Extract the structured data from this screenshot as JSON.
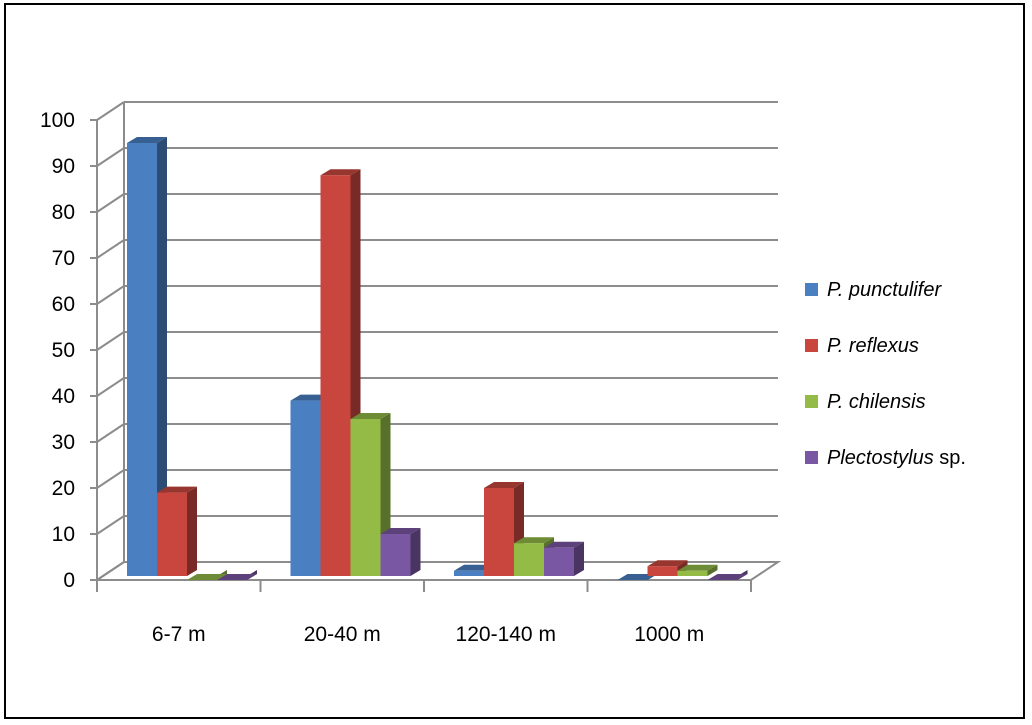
{
  "chart_data": {
    "type": "bar",
    "categories": [
      "6-7 m",
      "20-40 m",
      "120-140 m",
      "1000 m"
    ],
    "series": [
      {
        "name": "P. punctulifer",
        "name_italic": "P. punctulifer",
        "name_roman": "",
        "color": "#4a7fc1",
        "values": [
          95,
          39,
          2,
          0
        ]
      },
      {
        "name": "P. reflexus",
        "name_italic": "P. reflexus",
        "name_roman": "",
        "color": "#c9463f",
        "values": [
          19,
          88,
          20,
          3
        ]
      },
      {
        "name": "P. chilensis",
        "name_italic": "P. chilensis",
        "name_roman": "",
        "color": "#93bb46",
        "values": [
          0,
          35,
          8,
          2
        ]
      },
      {
        "name": "Plectostylus sp.",
        "name_italic": "Plectostylus",
        "name_roman": " sp.",
        "color": "#7a57a3",
        "values": [
          0,
          10,
          7,
          0
        ]
      }
    ],
    "yticks": [
      0,
      10,
      20,
      30,
      40,
      50,
      60,
      70,
      80,
      90,
      100
    ],
    "ylim": [
      0,
      100
    ],
    "grid": true,
    "legend": "right",
    "title": "",
    "xlabel": "",
    "ylabel": ""
  }
}
